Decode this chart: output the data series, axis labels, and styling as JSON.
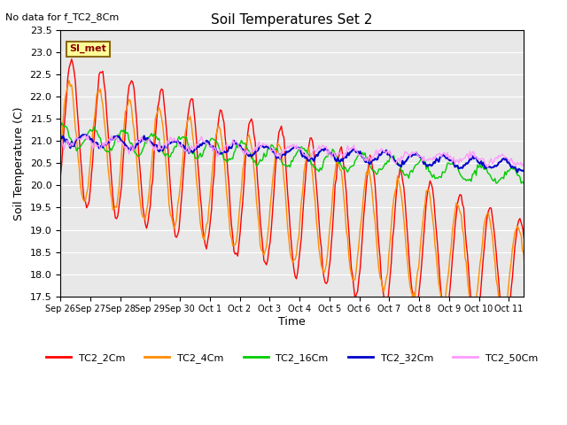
{
  "title": "Soil Temperatures Set 2",
  "top_left_note": "No data for f_TC2_8Cm",
  "ylabel": "Soil Temperature (C)",
  "xlabel": "Time",
  "ylim": [
    17.5,
    23.5
  ],
  "yticks": [
    17.5,
    18.0,
    18.5,
    19.0,
    19.5,
    20.0,
    20.5,
    21.0,
    21.5,
    22.0,
    22.5,
    23.0,
    23.5
  ],
  "xtick_labels": [
    "Sep 26",
    "Sep 27",
    "Sep 28",
    "Sep 29",
    "Sep 30",
    "Oct 1",
    "Oct 2",
    "Oct 3",
    "Oct 4",
    "Oct 5",
    "Oct 6",
    "Oct 7",
    "Oct 8",
    "Oct 9",
    "Oct 10",
    "Oct 11"
  ],
  "series": [
    {
      "name": "TC2_2Cm",
      "color": "#FF0000"
    },
    {
      "name": "TC2_4Cm",
      "color": "#FF8C00"
    },
    {
      "name": "TC2_16Cm",
      "color": "#00CC00"
    },
    {
      "name": "TC2_32Cm",
      "color": "#0000CC"
    },
    {
      "name": "TC2_50Cm",
      "color": "#FF99FF"
    }
  ],
  "si_met_label": "SI_met",
  "bg_color": "#E8E8E8",
  "legend_below": true
}
